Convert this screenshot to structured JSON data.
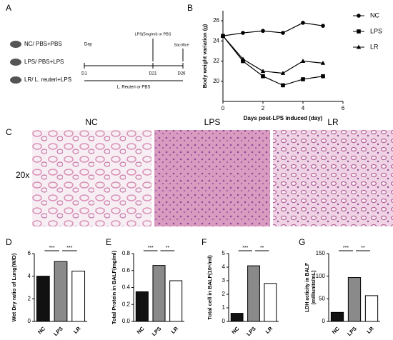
{
  "panel_a": {
    "label": "A",
    "groups": [
      "NC/ PBS+PBS",
      "LPS/ PBS+LPS",
      "LR/ L. reuteri+LPS"
    ],
    "day": "Day",
    "days": [
      "D1",
      "D21",
      "D26"
    ],
    "lps": "LPS(5mg/ml) or PBS",
    "sacrifice": "Sacrifice",
    "treatment": "L. Reuteri or PBS"
  },
  "panel_c": {
    "label": "C",
    "titles": [
      "NC",
      "LPS",
      "LR"
    ],
    "magnification": "20x"
  },
  "chart_data": [
    {
      "type": "line",
      "label": "B",
      "ylabel": "Body weight variation (g)",
      "xlabel": "Days post-LPS induced (day)",
      "x": [
        0,
        1,
        2,
        3,
        4,
        5
      ],
      "xlim": [
        0,
        6
      ],
      "xticks": [
        0,
        2,
        4,
        6
      ],
      "ylim": [
        18,
        27
      ],
      "yticks": [
        20,
        22,
        24,
        26
      ],
      "series": [
        {
          "name": "NC",
          "marker": "circle",
          "color": "#000",
          "values": [
            24.5,
            24.8,
            25.0,
            24.8,
            25.8,
            25.5
          ]
        },
        {
          "name": "LPS",
          "marker": "square",
          "color": "#000",
          "values": [
            24.5,
            22.0,
            20.5,
            19.6,
            20.2,
            20.5
          ]
        },
        {
          "name": "LR",
          "marker": "triangle",
          "color": "#000",
          "values": [
            24.5,
            22.2,
            21.0,
            20.8,
            22.0,
            21.8
          ]
        }
      ]
    },
    {
      "type": "bar",
      "label": "D",
      "ylabel": "Wet Dry ratio of Lung(W/D)",
      "categories": [
        "NC",
        "LPS",
        "LR"
      ],
      "values": [
        4.0,
        5.3,
        4.45
      ],
      "colors": [
        "#111111",
        "#8a8a8a",
        "#ffffff"
      ],
      "ylim": [
        0,
        6
      ],
      "yticks": [
        0,
        2,
        4,
        6
      ],
      "significance": [
        "***",
        "***"
      ]
    },
    {
      "type": "bar",
      "label": "E",
      "ylabel": "Total Protein in BALF(mg/ml)",
      "categories": [
        "NC",
        "LPS",
        "LR"
      ],
      "values": [
        0.35,
        0.66,
        0.48
      ],
      "colors": [
        "#111111",
        "#8a8a8a",
        "#ffffff"
      ],
      "ylim": [
        0,
        0.8
      ],
      "yticks": [
        {
          "value": 0,
          "label": "0.0"
        },
        0.2,
        0.4,
        0.6,
        0.8
      ],
      "significance": [
        "***",
        "**"
      ]
    },
    {
      "type": "bar",
      "label": "F",
      "ylabel": "Total cell in BALF(10⁶/ml)",
      "categories": [
        "NC",
        "LPS",
        "LR"
      ],
      "values": [
        0.6,
        4.1,
        2.8
      ],
      "colors": [
        "#111111",
        "#8a8a8a",
        "#ffffff"
      ],
      "ylim": [
        0,
        5
      ],
      "yticks": [
        0,
        1,
        2,
        3,
        4,
        5
      ],
      "significance": [
        "***",
        "**"
      ]
    },
    {
      "type": "bar",
      "label": "G",
      "ylabel": [
        "LDH acticity in BALF",
        "(milliunits/mL)"
      ],
      "categories": [
        "NC",
        "LPS",
        "LR"
      ],
      "values": [
        20,
        97,
        57
      ],
      "colors": [
        "#111111",
        "#8a8a8a",
        "#ffffff"
      ],
      "ylim": [
        0,
        150
      ],
      "yticks": [
        0,
        50,
        100,
        150
      ],
      "significance": [
        "***",
        "**"
      ]
    }
  ]
}
